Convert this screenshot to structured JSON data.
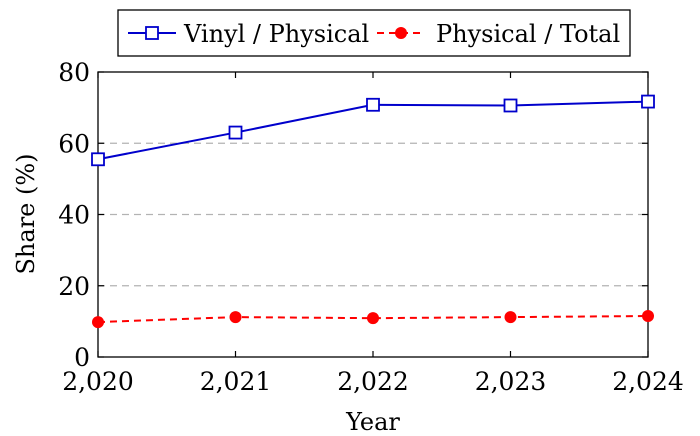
{
  "chart_data": {
    "type": "line",
    "title": "",
    "xlabel": "Year",
    "ylabel": "Share (%)",
    "x": [
      2020,
      2021,
      2022,
      2023,
      2024
    ],
    "x_tick_labels": [
      "2,020",
      "2,021",
      "2,022",
      "2,023",
      "2,024"
    ],
    "y_ticks": [
      0,
      20,
      40,
      60,
      80
    ],
    "ylim": [
      0,
      80
    ],
    "grid": "horizontal dashed",
    "legend_position": "top",
    "series": [
      {
        "name": "Vinyl / Physical",
        "values": [
          55.5,
          63,
          70.8,
          70.6,
          71.7
        ],
        "color": "#0000cc",
        "line_style": "solid",
        "marker": "open-square"
      },
      {
        "name": "Physical / Total",
        "values": [
          9.8,
          11.2,
          10.9,
          11.2,
          11.5
        ],
        "color": "#ff0000",
        "line_style": "dashed",
        "marker": "filled-circle"
      }
    ]
  }
}
